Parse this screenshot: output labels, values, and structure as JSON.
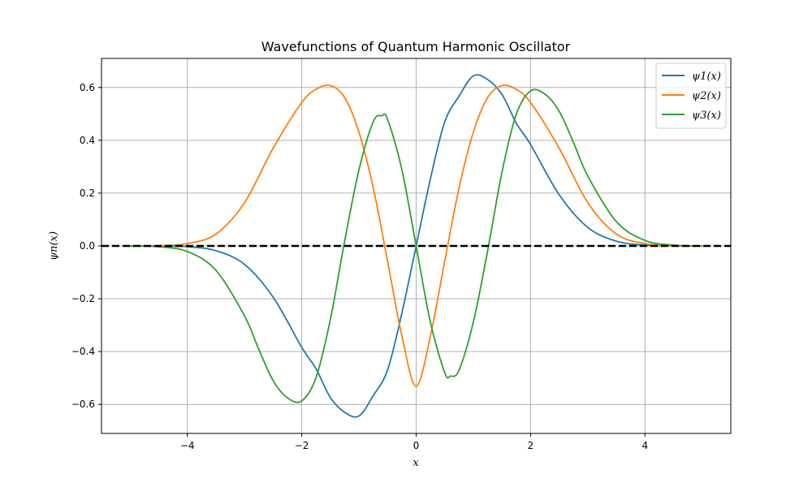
{
  "chart_data": {
    "type": "line",
    "title": "Wavefunctions of Quantum Harmonic Oscillator",
    "xlabel": "x",
    "ylabel": "ψn(x)",
    "xlim": [
      -5.5,
      5.5
    ],
    "ylim": [
      -0.71,
      0.71
    ],
    "xticks": [
      -4,
      -2,
      0,
      2,
      4
    ],
    "xtick_labels": [
      "−4",
      "−2",
      "0",
      "2",
      "4"
    ],
    "yticks": [
      -0.6,
      -0.4,
      -0.2,
      0.0,
      0.2,
      0.4,
      0.6
    ],
    "ytick_labels": [
      "−0.6",
      "−0.4",
      "−0.2",
      "0.0",
      "0.2",
      "0.4",
      "0.6"
    ],
    "grid": true,
    "legend_position": "top-right",
    "baseline": {
      "y": 0,
      "color": "#000000",
      "style": "dashed"
    },
    "series": [
      {
        "name": "ψ1(x)",
        "color": "#1f77b4",
        "x": [
          -5,
          -4.5,
          -4,
          -3.5,
          -3,
          -2.5,
          -2,
          -1.75,
          -1.5,
          -1.25,
          -1,
          -0.75,
          -0.5,
          -0.25,
          0,
          0.25,
          0.5,
          0.75,
          1,
          1.25,
          1.5,
          1.75,
          2,
          2.5,
          3,
          3.5,
          4,
          4.5,
          5
        ],
        "y": [
          0.0,
          -0.0002,
          -0.003,
          -0.018,
          -0.07,
          -0.194,
          -0.384,
          -0.465,
          -0.574,
          -0.63,
          -0.644,
          -0.567,
          -0.47,
          -0.255,
          0.0,
          0.255,
          0.47,
          0.567,
          0.644,
          0.63,
          0.574,
          0.465,
          0.384,
          0.194,
          0.07,
          0.018,
          0.003,
          0.0002,
          0.0
        ]
      },
      {
        "name": "ψ2(x)",
        "color": "#ff7f0e",
        "x": [
          -5,
          -4.5,
          -4,
          -3.5,
          -3,
          -2.5,
          -2,
          -1.75,
          -1.5,
          -1.25,
          -1,
          -0.75,
          -0.5,
          -0.25,
          0,
          0.25,
          0.5,
          0.75,
          1,
          1.25,
          1.5,
          1.75,
          2,
          2.5,
          3,
          3.5,
          4,
          4.5,
          5
        ],
        "y": [
          0.0,
          0.001,
          0.009,
          0.045,
          0.164,
          0.37,
          0.543,
          0.593,
          0.607,
          0.562,
          0.431,
          0.22,
          -0.057,
          -0.34,
          -0.531,
          -0.34,
          -0.057,
          0.22,
          0.431,
          0.562,
          0.607,
          0.593,
          0.543,
          0.37,
          0.164,
          0.045,
          0.009,
          0.001,
          0.0
        ]
      },
      {
        "name": "ψ3(x)",
        "color": "#2ca02c",
        "x": [
          -5,
          -4.5,
          -4,
          -3.5,
          -3,
          -2.75,
          -2.5,
          -2.25,
          -2,
          -1.75,
          -1.5,
          -1.25,
          -1,
          -0.75,
          -0.6,
          -0.5,
          -0.25,
          0,
          0.25,
          0.5,
          0.6,
          0.75,
          1,
          1.25,
          1.5,
          1.75,
          2,
          2.25,
          2.5,
          2.75,
          3,
          3.5,
          4,
          4.5,
          5
        ],
        "y": [
          -0.0,
          -0.003,
          -0.021,
          -0.092,
          -0.265,
          -0.392,
          -0.51,
          -0.575,
          -0.587,
          -0.498,
          -0.279,
          0.018,
          0.288,
          0.47,
          0.493,
          0.48,
          0.29,
          0.0,
          -0.29,
          -0.48,
          -0.493,
          -0.47,
          -0.288,
          -0.018,
          0.279,
          0.498,
          0.587,
          0.575,
          0.51,
          0.392,
          0.265,
          0.092,
          0.021,
          0.003,
          0.0
        ]
      }
    ]
  }
}
